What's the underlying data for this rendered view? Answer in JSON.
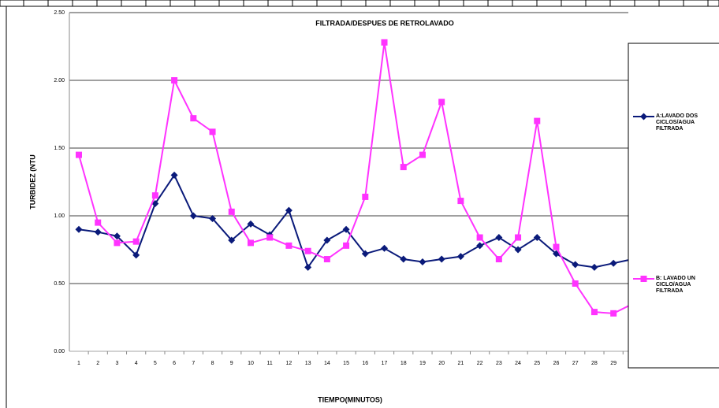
{
  "chart_data": {
    "type": "line",
    "title": "FILTRADA/DESPUES DE RETROLAVADO",
    "x_label": "TIEMPO(MINUTOS)",
    "y_label": "TURBIDEZ (NTU",
    "categories": [
      "1",
      "2",
      "3",
      "4",
      "5",
      "6",
      "7",
      "8",
      "9",
      "10",
      "11",
      "12",
      "13",
      "14",
      "15",
      "16",
      "17",
      "18",
      "19",
      "20",
      "21",
      "22",
      "23",
      "24",
      "25",
      "26",
      "27",
      "28",
      "29",
      null
    ],
    "series": [
      {
        "name": "A:LAVADO DOS CICLOS/AGUA FILTRADA",
        "color": "#0a1a7a",
        "marker": "diamond",
        "values": [
          0.9,
          0.88,
          0.85,
          0.71,
          1.09,
          1.3,
          1.0,
          0.98,
          0.82,
          0.94,
          0.86,
          1.04,
          0.62,
          0.82,
          0.9,
          0.72,
          0.76,
          0.68,
          0.66,
          0.68,
          0.7,
          0.78,
          0.84,
          0.75,
          0.84,
          0.72,
          0.64,
          0.62,
          0.65,
          0.68
        ]
      },
      {
        "name": "B: LAVADO UN CICLO/AGUA FILTRADA",
        "color": "#ff33ff",
        "marker": "square",
        "values": [
          1.45,
          0.95,
          0.8,
          0.81,
          1.15,
          2.0,
          1.72,
          1.62,
          1.03,
          0.8,
          0.84,
          0.78,
          0.74,
          0.68,
          0.78,
          1.14,
          2.28,
          1.36,
          1.45,
          1.84,
          1.11,
          0.84,
          0.68,
          0.84,
          1.7,
          0.77,
          0.5,
          0.29,
          0.28,
          0.35
        ]
      }
    ],
    "ylim": [
      0,
      2.5
    ],
    "yticks": [
      {
        "value": 0,
        "label": "0.00"
      },
      {
        "value": 0.5,
        "label": "0.50"
      },
      {
        "value": 1,
        "label": "1.00"
      },
      {
        "value": 1.5,
        "label": "1.50"
      },
      {
        "value": 2,
        "label": "2.00"
      },
      {
        "value": 2.5,
        "label": "2.50"
      }
    ],
    "grid": true
  }
}
